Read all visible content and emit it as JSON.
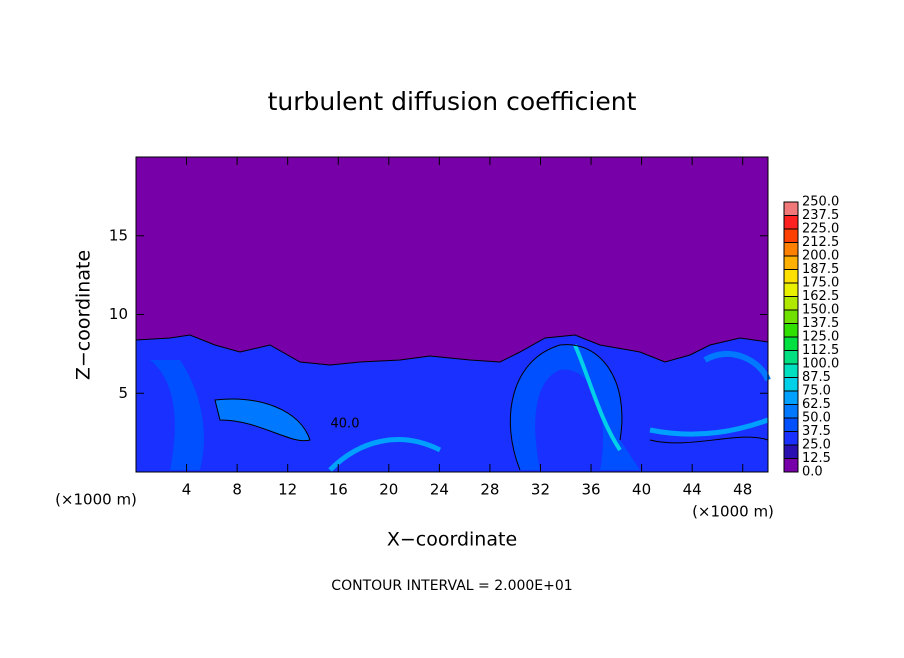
{
  "chart_data": {
    "type": "contour",
    "title": "turbulent diffusion coefficient",
    "xlabel": "X−coordinate",
    "ylabel": "Z−coordinate",
    "x_unit": "(×1000 m)",
    "footer": "CONTOUR INTERVAL = 2.000E+01",
    "contour_labels": [
      "40.0"
    ],
    "xlim": [
      0,
      50
    ],
    "ylim": [
      0,
      20
    ],
    "xticks": [
      4,
      8,
      12,
      16,
      20,
      24,
      28,
      32,
      36,
      40,
      44,
      48
    ],
    "yticks": [
      5,
      10,
      15
    ],
    "colorbar": {
      "ticks": [
        {
          "value": 0,
          "label": "0.0"
        },
        {
          "value": 12.5,
          "label": "12.5"
        },
        {
          "value": 25,
          "label": "25.0"
        },
        {
          "value": 37.5,
          "label": "37.5"
        },
        {
          "value": 50,
          "label": "50.0"
        },
        {
          "value": 62.5,
          "label": "62.5"
        },
        {
          "value": 75,
          "label": "75.0"
        },
        {
          "value": 87.5,
          "label": "87.5"
        },
        {
          "value": 100,
          "label": "100.0"
        },
        {
          "value": 112.5,
          "label": "112.5"
        },
        {
          "value": 125,
          "label": "125.0"
        },
        {
          "value": 137.5,
          "label": "137.5"
        },
        {
          "value": 150,
          "label": "150.0"
        },
        {
          "value": 162.5,
          "label": "162.5"
        },
        {
          "value": 175,
          "label": "175.0"
        },
        {
          "value": 187.5,
          "label": "187.5"
        },
        {
          "value": 200,
          "label": "200.0"
        },
        {
          "value": 212.5,
          "label": "212.5"
        },
        {
          "value": 225,
          "label": "225.0"
        },
        {
          "value": 237.5,
          "label": "237.5"
        },
        {
          "value": 250,
          "label": "250.0"
        }
      ],
      "colors": [
        "#7800a8",
        "#2a10b0",
        "#1a30ff",
        "#0050ff",
        "#0078ff",
        "#00a0ff",
        "#00d0e8",
        "#00e0c0",
        "#00e080",
        "#00e040",
        "#30e000",
        "#70e000",
        "#b0e800",
        "#e8f000",
        "#ffe000",
        "#ffb000",
        "#ff8000",
        "#ff4000",
        "#ff2020",
        "#f07878"
      ]
    }
  }
}
